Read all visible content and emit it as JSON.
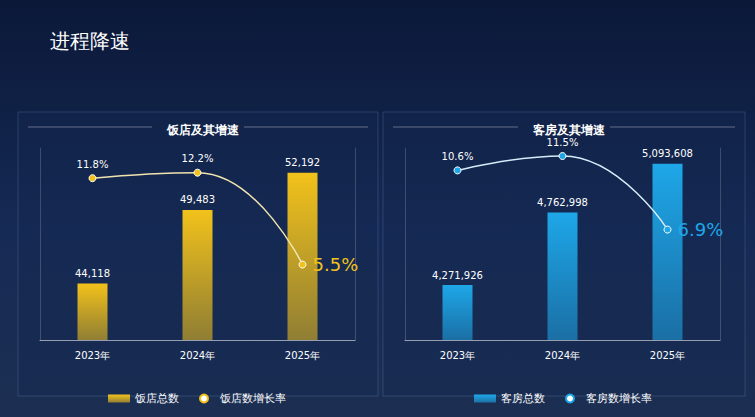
{
  "title": "进程降速",
  "chart_data": [
    {
      "type": "bar",
      "title": "饭店及其增速",
      "categories": [
        "2023年",
        "2024年",
        "2025年"
      ],
      "series": [
        {
          "name": "饭店总数",
          "type": "bar",
          "color": "#f2c21b",
          "values": [
            44118,
            49483,
            52192
          ],
          "value_labels": [
            "44,118",
            "49,483",
            "52,192"
          ]
        },
        {
          "name": "饭店数增长率",
          "type": "line",
          "axis": "y2",
          "color": "#f1e3b0",
          "marker": "circle",
          "values": [
            11.8,
            12.2,
            5.5
          ],
          "value_labels": [
            "11.8%",
            "12.2%",
            "5.5%"
          ]
        }
      ],
      "ylim": [
        40000,
        54000
      ],
      "y2lim": [
        0,
        14
      ],
      "tick_labels": "x",
      "data_labels": true,
      "legend": "bottom",
      "grid": false
    },
    {
      "type": "bar",
      "title": "客房及其增速",
      "categories": [
        "2023年",
        "2024年",
        "2025年"
      ],
      "series": [
        {
          "name": "客房总数",
          "type": "bar",
          "color": "#1ea7e8",
          "values": [
            4271926,
            4762998,
            5093608
          ],
          "value_labels": [
            "4,271,926",
            "4,762,998",
            "5,093,608"
          ]
        },
        {
          "name": "客房数增长率",
          "type": "line",
          "axis": "y2",
          "color": "#d6ecf8",
          "marker": "circle",
          "values": [
            10.6,
            11.5,
            6.9
          ],
          "value_labels": [
            "10.6%",
            "11.5%",
            "6.9%"
          ]
        }
      ],
      "ylim": [
        3900000,
        5200000
      ],
      "y2lim": [
        0,
        12
      ],
      "tick_labels": "x",
      "data_labels": true,
      "legend": "bottom",
      "grid": false
    }
  ]
}
